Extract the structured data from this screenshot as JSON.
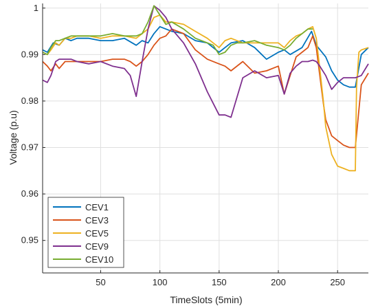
{
  "chart_data": {
    "type": "line",
    "title": "",
    "xlabel": "TimeSlots (5min)",
    "ylabel": "Voltage (p.u)",
    "xlim": [
      1,
      276
    ],
    "ylim": [
      0.943,
      1.001
    ],
    "xticks": [
      50,
      100,
      150,
      200,
      250
    ],
    "yticks": [
      0.95,
      0.96,
      0.97,
      0.98,
      0.99,
      1
    ],
    "ytick_labels": [
      "0.95",
      "0.96",
      "0.97",
      "0.98",
      "0.99",
      "1"
    ],
    "grid": true,
    "legend_position": "bottom-left",
    "colors": {
      "CEV1": "#0072BD",
      "CEV3": "#D95319",
      "CEV5": "#EDB120",
      "CEV9": "#7E2F8E",
      "CEV10": "#77AC30",
      "axis": "#262626",
      "grid": "#dfdfdf"
    },
    "series": [
      {
        "name": "CEV1",
        "x": [
          1,
          5,
          10,
          15,
          20,
          25,
          30,
          40,
          50,
          60,
          70,
          80,
          85,
          90,
          95,
          100,
          105,
          110,
          120,
          130,
          140,
          150,
          155,
          160,
          170,
          180,
          190,
          200,
          205,
          210,
          220,
          228,
          232,
          240,
          245,
          250,
          255,
          260,
          265,
          270,
          276
        ],
        "y": [
          0.991,
          0.9905,
          0.9925,
          0.992,
          0.9935,
          0.993,
          0.9935,
          0.9935,
          0.993,
          0.993,
          0.9935,
          0.992,
          0.993,
          0.9925,
          0.9945,
          0.996,
          0.9955,
          0.995,
          0.9945,
          0.993,
          0.9925,
          0.9905,
          0.9915,
          0.9925,
          0.993,
          0.9915,
          0.989,
          0.9905,
          0.991,
          0.99,
          0.9915,
          0.995,
          0.992,
          0.9895,
          0.9865,
          0.9845,
          0.9835,
          0.983,
          0.983,
          0.99,
          0.9915
        ]
      },
      {
        "name": "CEV3",
        "x": [
          1,
          5,
          8,
          12,
          15,
          20,
          25,
          30,
          40,
          50,
          60,
          70,
          75,
          80,
          85,
          90,
          95,
          100,
          105,
          110,
          120,
          130,
          140,
          150,
          155,
          160,
          170,
          180,
          190,
          200,
          205,
          210,
          215,
          220,
          225,
          229,
          232,
          235,
          238,
          240,
          245,
          250,
          255,
          260,
          265,
          270,
          276
        ],
        "y": [
          0.9885,
          0.9875,
          0.9865,
          0.988,
          0.987,
          0.9885,
          0.9885,
          0.9885,
          0.9885,
          0.9885,
          0.989,
          0.989,
          0.9885,
          0.9875,
          0.9885,
          0.99,
          0.992,
          0.9935,
          0.994,
          0.9955,
          0.9945,
          0.991,
          0.989,
          0.988,
          0.9875,
          0.9865,
          0.9885,
          0.986,
          0.9865,
          0.9875,
          0.9815,
          0.9855,
          0.9895,
          0.9905,
          0.9915,
          0.994,
          0.9915,
          0.9855,
          0.9795,
          0.976,
          0.9725,
          0.9715,
          0.9705,
          0.97,
          0.97,
          0.9835,
          0.986
        ]
      },
      {
        "name": "CEV5",
        "x": [
          1,
          5,
          8,
          12,
          15,
          20,
          25,
          30,
          40,
          50,
          60,
          70,
          80,
          85,
          90,
          95,
          100,
          105,
          110,
          120,
          130,
          140,
          145,
          150,
          155,
          160,
          165,
          170,
          180,
          190,
          200,
          205,
          210,
          215,
          220,
          225,
          229,
          232,
          235,
          238,
          240,
          245,
          250,
          255,
          260,
          265,
          266,
          268,
          270,
          276
        ],
        "y": [
          0.9905,
          0.99,
          0.991,
          0.9925,
          0.992,
          0.9935,
          0.9935,
          0.994,
          0.994,
          0.9935,
          0.994,
          0.994,
          0.9935,
          0.9945,
          0.9955,
          0.998,
          0.9985,
          0.997,
          0.997,
          0.9965,
          0.995,
          0.9935,
          0.9925,
          0.9915,
          0.993,
          0.9935,
          0.993,
          0.9925,
          0.9925,
          0.9925,
          0.9925,
          0.9915,
          0.993,
          0.994,
          0.9945,
          0.9955,
          0.996,
          0.9935,
          0.987,
          0.98,
          0.9745,
          0.9685,
          0.966,
          0.9655,
          0.965,
          0.965,
          0.983,
          0.9905,
          0.991,
          0.9915
        ]
      },
      {
        "name": "CEV9",
        "x": [
          1,
          5,
          8,
          12,
          15,
          20,
          25,
          30,
          40,
          50,
          60,
          70,
          75,
          80,
          85,
          90,
          95,
          100,
          105,
          110,
          120,
          130,
          140,
          145,
          150,
          155,
          160,
          170,
          180,
          190,
          200,
          205,
          210,
          215,
          220,
          225,
          229,
          232,
          235,
          240,
          245,
          250,
          255,
          260,
          265,
          270,
          276
        ],
        "y": [
          0.9845,
          0.984,
          0.9855,
          0.9885,
          0.989,
          0.989,
          0.989,
          0.9885,
          0.988,
          0.9885,
          0.9875,
          0.987,
          0.9855,
          0.981,
          0.9885,
          0.9955,
          1.0005,
          0.9995,
          0.998,
          0.9955,
          0.9925,
          0.988,
          0.982,
          0.9795,
          0.977,
          0.977,
          0.9765,
          0.985,
          0.9865,
          0.985,
          0.9855,
          0.9815,
          0.986,
          0.9875,
          0.9885,
          0.9885,
          0.9888,
          0.9885,
          0.9875,
          0.9855,
          0.9825,
          0.984,
          0.985,
          0.985,
          0.985,
          0.9855,
          0.988
        ]
      },
      {
        "name": "CEV10",
        "x": [
          1,
          5,
          8,
          12,
          15,
          20,
          25,
          30,
          40,
          50,
          60,
          70,
          80,
          85,
          90,
          95,
          100,
          105,
          110,
          120,
          130,
          140,
          145,
          150,
          155,
          160,
          165,
          170,
          180,
          190,
          200,
          205,
          210,
          215,
          220,
          225,
          229
        ],
        "y": [
          0.9905,
          0.99,
          0.9915,
          0.993,
          0.993,
          0.9935,
          0.994,
          0.994,
          0.994,
          0.994,
          0.9945,
          0.994,
          0.994,
          0.9945,
          0.997,
          1.0005,
          0.9985,
          0.9965,
          0.997,
          0.9955,
          0.9935,
          0.9925,
          0.992,
          0.99,
          0.9905,
          0.992,
          0.9925,
          0.9925,
          0.993,
          0.992,
          0.9915,
          0.991,
          0.992,
          0.9935,
          0.9945,
          0.9955,
          0.9955
        ]
      }
    ]
  }
}
